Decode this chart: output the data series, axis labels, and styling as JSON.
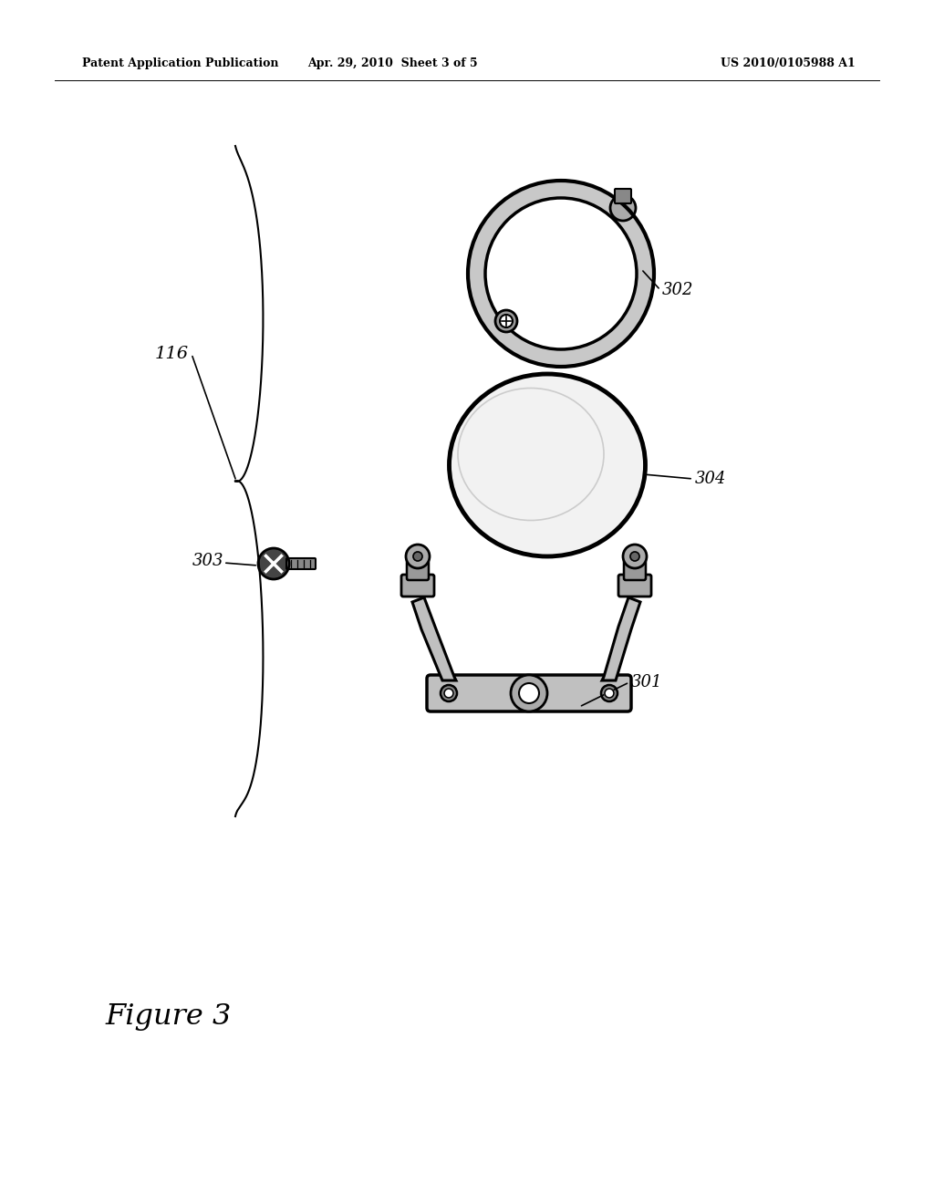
{
  "header_left": "Patent Application Publication",
  "header_mid": "Apr. 29, 2010  Sheet 3 of 5",
  "header_right": "US 2010/0105988 A1",
  "figure_caption": "Figure 3",
  "label_116": "116",
  "label_302": "302",
  "label_304": "304",
  "label_303": "303",
  "label_301": "301",
  "bg_color": "#ffffff",
  "line_color": "#000000",
  "fig_width": 10.24,
  "fig_height": 13.2,
  "dpi": 100
}
